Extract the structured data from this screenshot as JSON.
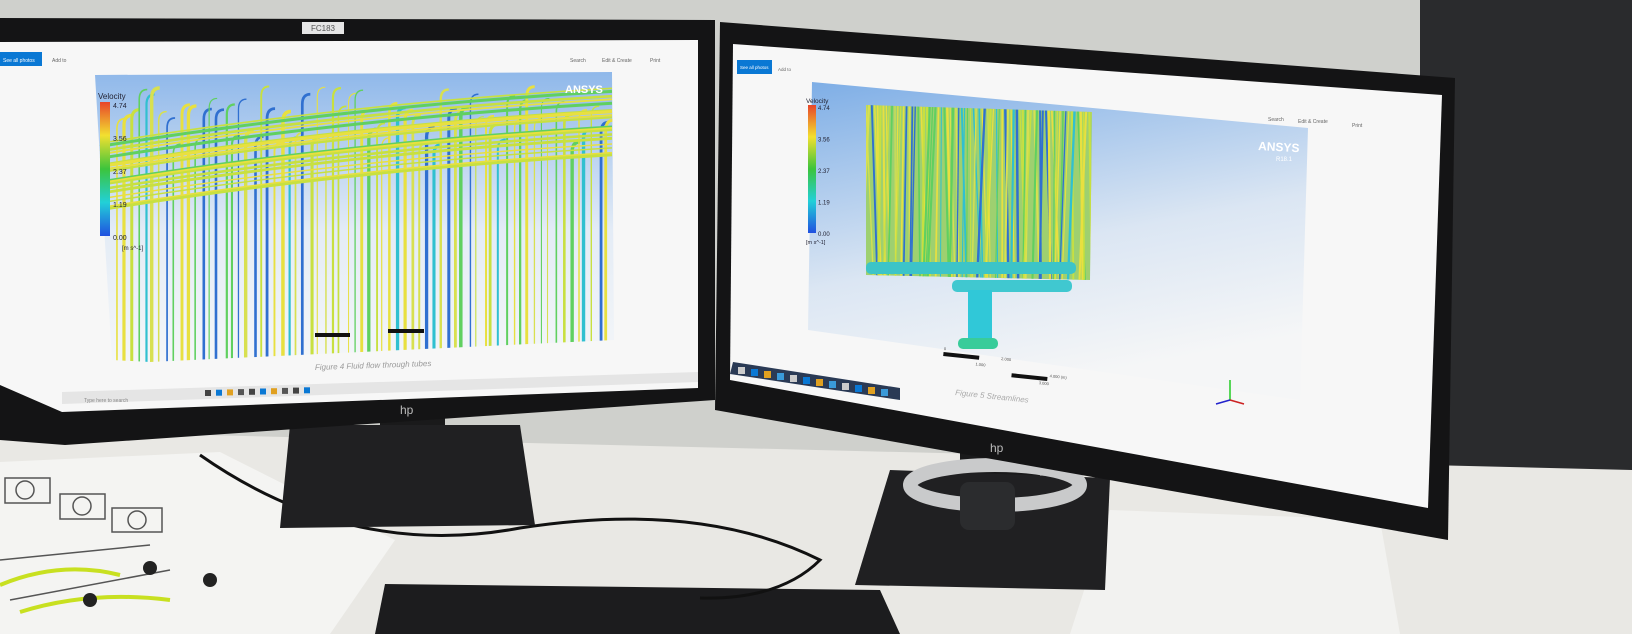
{
  "scene": {
    "wall_color": "#cfd0cc",
    "desk_color": "#e9e8e4",
    "monitor_brand": "hp",
    "label_sticker": "FC183"
  },
  "left_screen": {
    "toolbar": {
      "primary_button": "See all photos",
      "add_to": "Add to",
      "search": "Search",
      "edit_create": "Edit & Create",
      "print": "Print"
    },
    "legend": {
      "title": "Velocity",
      "ticks": [
        "4.74",
        "3.56",
        "2.37",
        "1.19",
        "0.00"
      ],
      "unit": "[m s^-1]"
    },
    "logo": "ANSYS",
    "caption": "Figure 4 Fluid flow through tubes",
    "taskbar": {
      "search_placeholder": "Type here to search"
    }
  },
  "right_screen": {
    "toolbar": {
      "primary_button": "See all photos",
      "add_to": "Add to",
      "search": "Search",
      "edit_create": "Edit & Create",
      "print": "Print"
    },
    "legend": {
      "title": "Velocity",
      "ticks": [
        "4.74",
        "3.56",
        "2.37",
        "1.19",
        "0.00"
      ],
      "unit": "[m s^-1]"
    },
    "logo": "ANSYS",
    "logo_version": "R18.1",
    "scale_labels": [
      "0",
      "2.000",
      "4.000 (m)",
      "1.000",
      "3.000"
    ],
    "caption": "Figure 5 Streamlines"
  },
  "colors": {
    "legend_high": "#e8452a",
    "legend_mid_high": "#f2e030",
    "legend_mid": "#3cc43c",
    "legend_mid_low": "#22d0d8",
    "legend_low": "#2050e0",
    "accent": "#0a78d4"
  }
}
